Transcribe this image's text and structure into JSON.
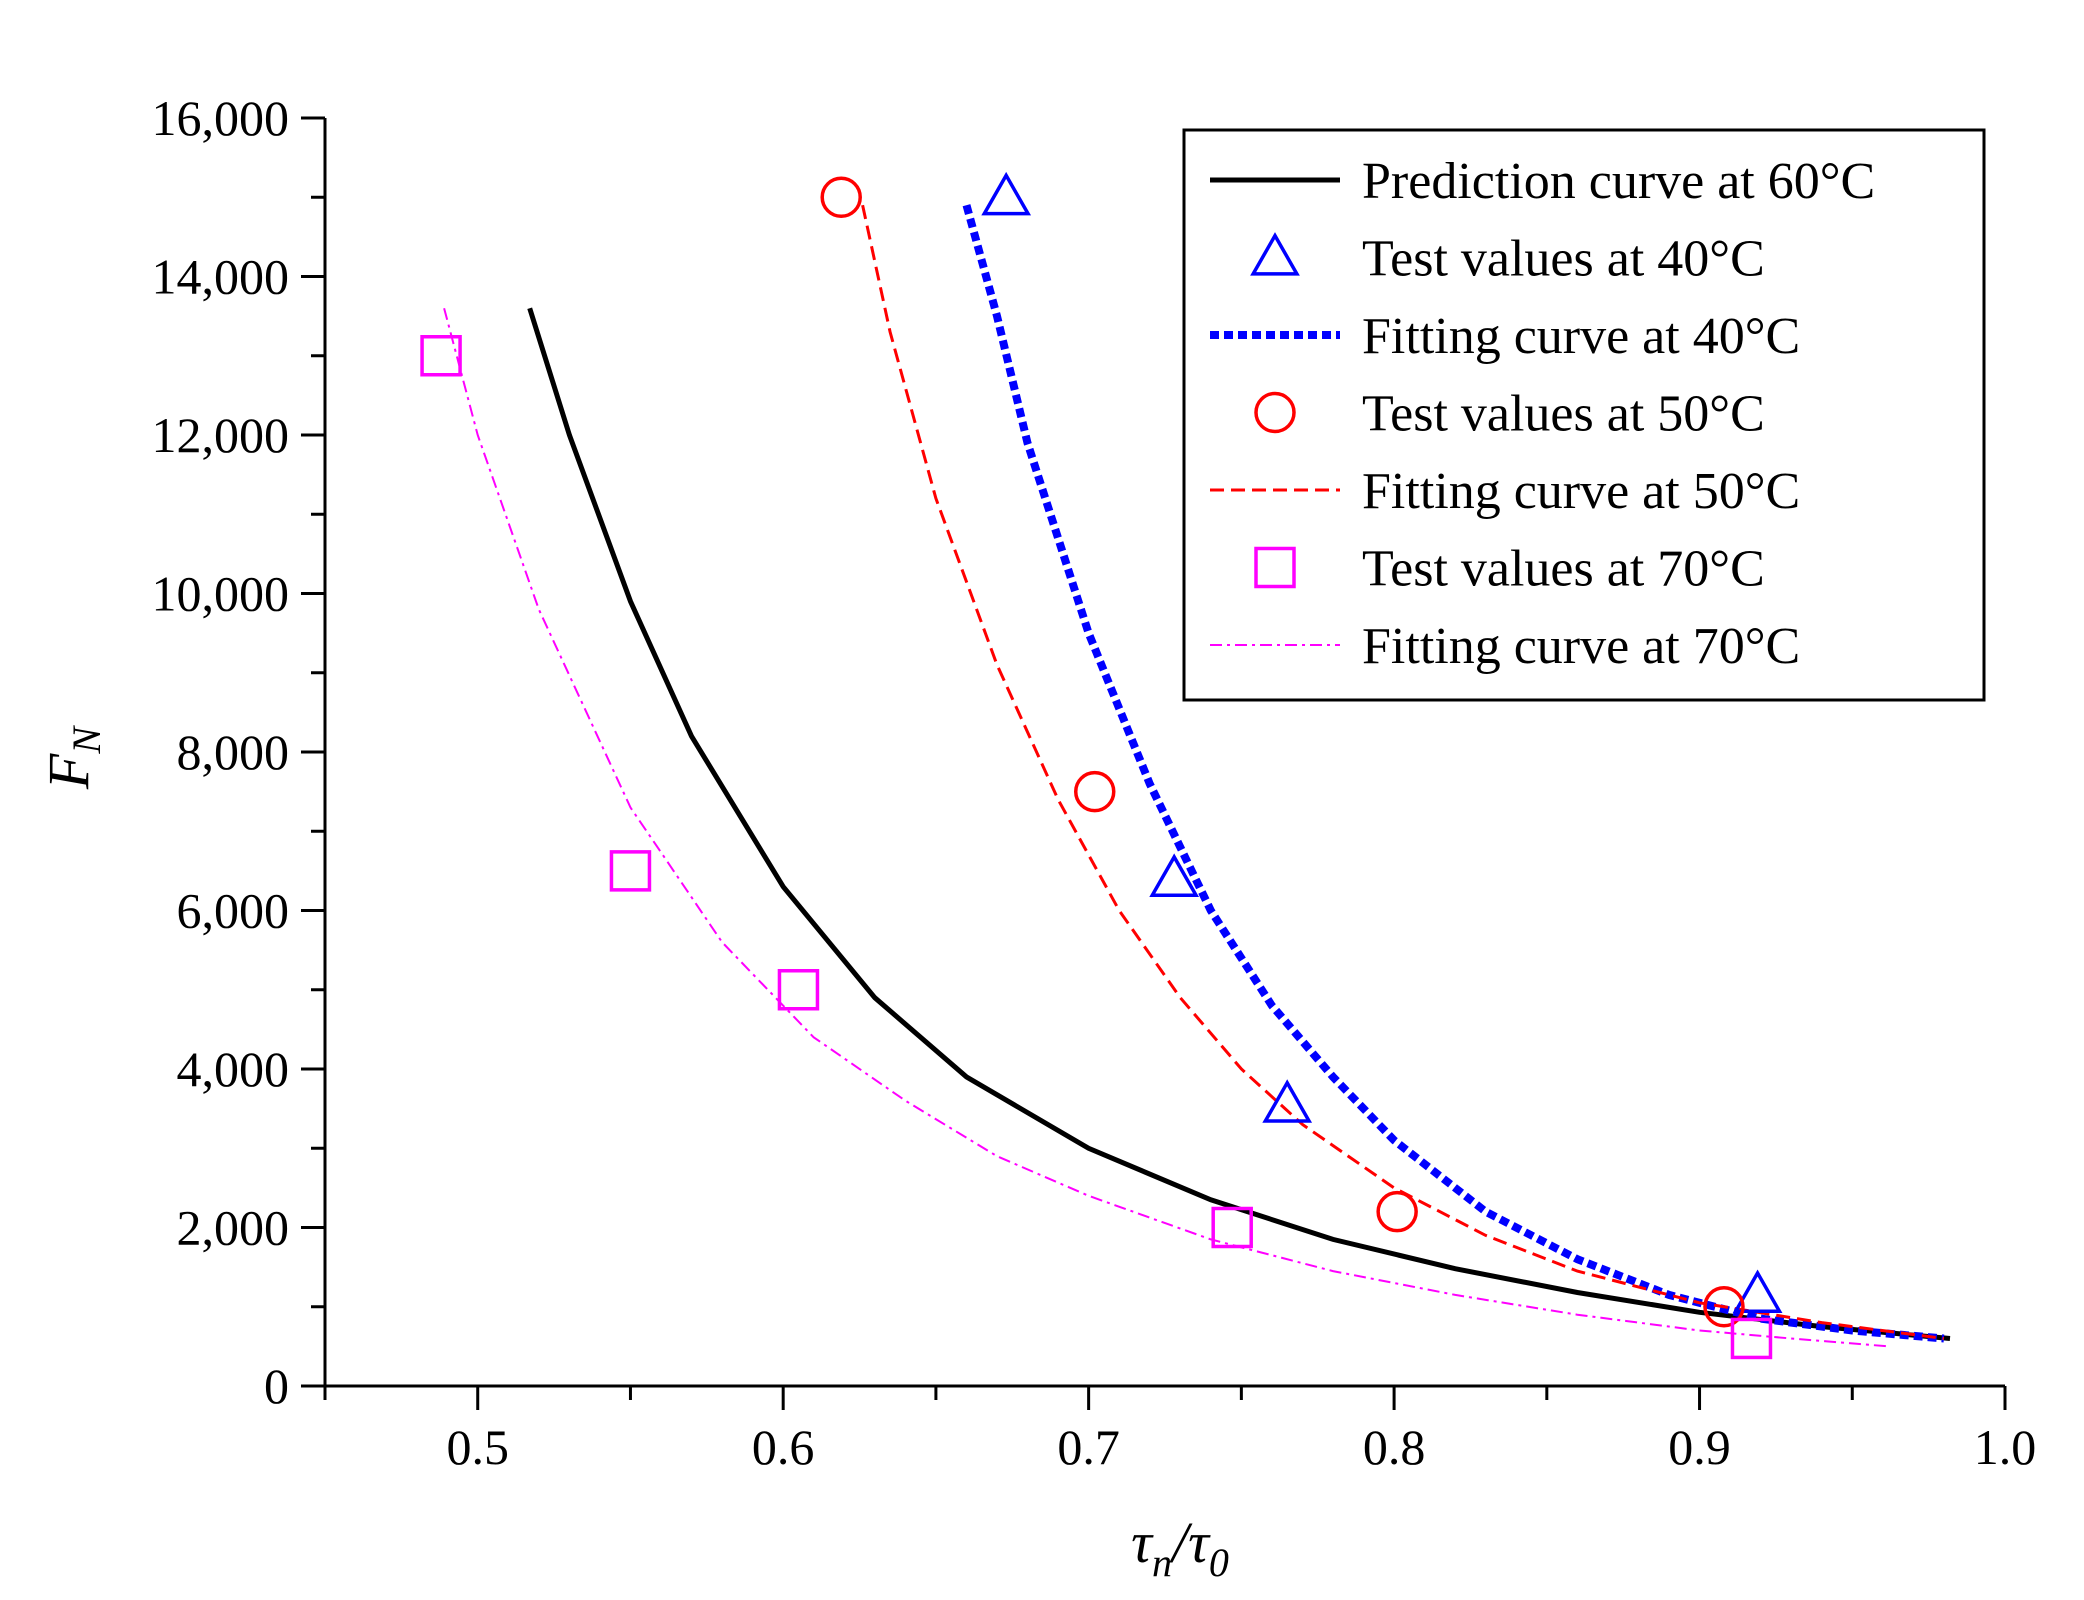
{
  "chart_data": {
    "type": "scatter",
    "title": "",
    "xlabel": "τn/τ0",
    "xlabel_main": "τ",
    "xlabel_sub_num": "n",
    "xlabel_slash": "/",
    "xlabel_sub_den": "0",
    "ylabel": "FN",
    "ylabel_main": "F",
    "ylabel_sub": "N",
    "xlim": [
      0.45,
      1.0
    ],
    "ylim": [
      0,
      16000
    ],
    "x_ticks": [
      0.5,
      0.6,
      0.7,
      0.8,
      0.9,
      1.0
    ],
    "x_tick_labels": [
      "0.5",
      "0.6",
      "0.7",
      "0.8",
      "0.9",
      "1.0"
    ],
    "y_ticks": [
      0,
      2000,
      4000,
      6000,
      8000,
      10000,
      12000,
      14000,
      16000
    ],
    "y_tick_labels": [
      "0",
      "2,000",
      "4,000",
      "6,000",
      "8,000",
      "10,000",
      "12,000",
      "14,000",
      "16,000"
    ],
    "grid": false,
    "legend_position": "top-right",
    "series": [
      {
        "name": "Prediction curve at 60°C",
        "kind": "line",
        "style": "solid",
        "color": "#000000",
        "x": [
          0.517,
          0.53,
          0.55,
          0.57,
          0.6,
          0.63,
          0.66,
          0.7,
          0.74,
          0.78,
          0.82,
          0.86,
          0.9,
          0.94,
          0.982
        ],
        "y": [
          13600,
          12000,
          9900,
          8200,
          6300,
          4900,
          3900,
          3000,
          2350,
          1850,
          1480,
          1180,
          930,
          750,
          600
        ]
      },
      {
        "name": "Test values at 40°C",
        "kind": "points",
        "marker": "triangle",
        "color": "#0000ff",
        "x": [
          0.673,
          0.728,
          0.765,
          0.919
        ],
        "y": [
          15000,
          6400,
          3550,
          1150
        ]
      },
      {
        "name": "Fitting curve at 40°C",
        "kind": "line",
        "style": "dotted",
        "color": "#0000ff",
        "x": [
          0.66,
          0.67,
          0.68,
          0.7,
          0.72,
          0.74,
          0.76,
          0.78,
          0.8,
          0.83,
          0.86,
          0.89,
          0.92,
          0.95,
          0.98
        ],
        "y": [
          14900,
          13500,
          11900,
          9500,
          7600,
          6000,
          4800,
          3900,
          3100,
          2200,
          1600,
          1150,
          850,
          700,
          600
        ]
      },
      {
        "name": "Test values at 50°C",
        "kind": "points",
        "marker": "circle",
        "color": "#ff0000",
        "x": [
          0.619,
          0.702,
          0.801,
          0.908
        ],
        "y": [
          15000,
          7500,
          2200,
          1000
        ]
      },
      {
        "name": "Fitting curve at 50°C",
        "kind": "line",
        "style": "dashdot",
        "color": "#ff0000",
        "x": [
          0.626,
          0.635,
          0.65,
          0.67,
          0.69,
          0.71,
          0.73,
          0.75,
          0.77,
          0.8,
          0.83,
          0.86,
          0.9,
          0.94,
          0.98
        ],
        "y": [
          14900,
          13300,
          11200,
          9100,
          7400,
          6000,
          4900,
          4000,
          3300,
          2500,
          1900,
          1450,
          1050,
          800,
          600
        ]
      },
      {
        "name": "Test values at 70°C",
        "kind": "points",
        "marker": "square",
        "color": "#ff00ff",
        "x": [
          0.488,
          0.55,
          0.605,
          0.747,
          0.917
        ],
        "y": [
          13000,
          6500,
          5000,
          2000,
          600
        ]
      },
      {
        "name": "Fitting curve at 70°C",
        "kind": "line",
        "style": "dashdotthin",
        "color": "#ff00ff",
        "x": [
          0.489,
          0.5,
          0.52,
          0.55,
          0.58,
          0.61,
          0.64,
          0.67,
          0.7,
          0.74,
          0.78,
          0.82,
          0.86,
          0.9,
          0.93,
          0.962
        ],
        "y": [
          13600,
          12000,
          9800,
          7300,
          5600,
          4400,
          3600,
          2900,
          2400,
          1850,
          1450,
          1150,
          900,
          700,
          600,
          500
        ]
      }
    ]
  }
}
